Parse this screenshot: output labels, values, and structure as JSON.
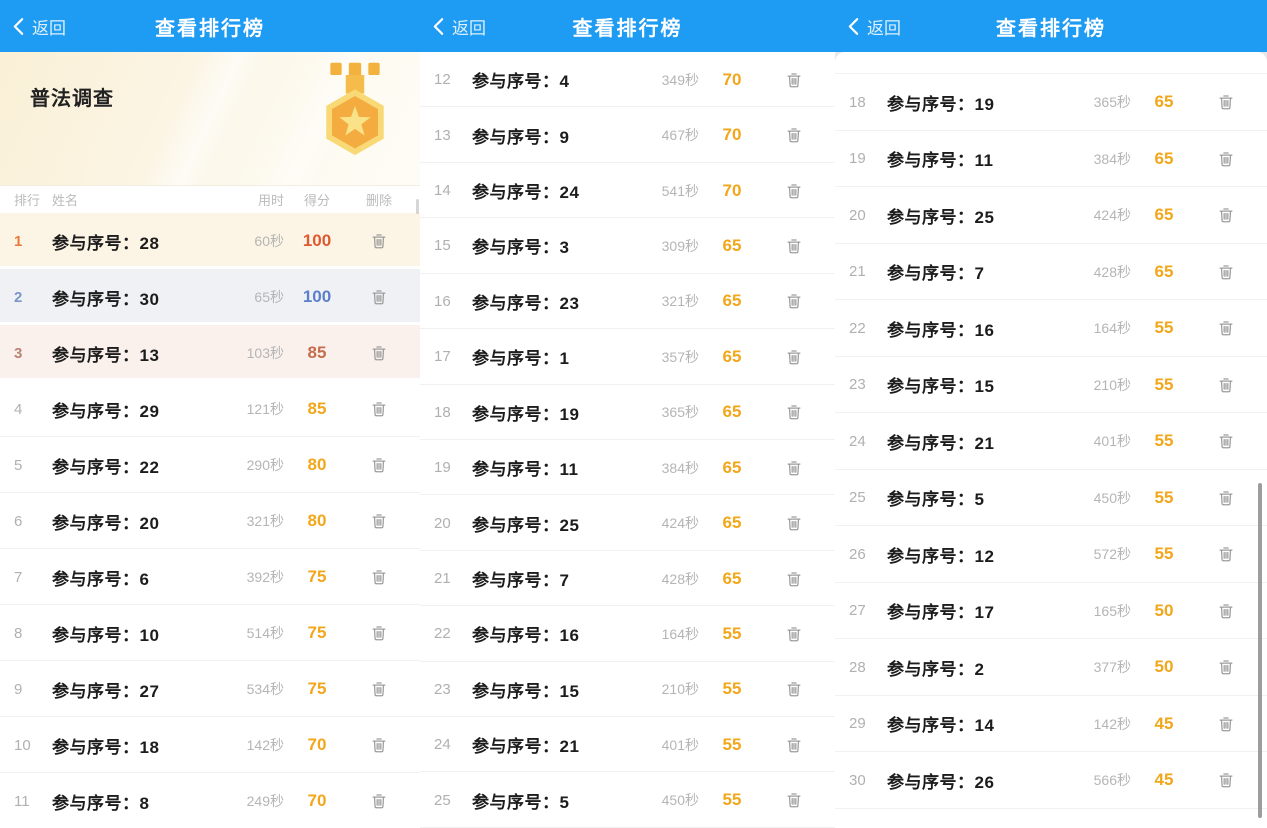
{
  "app": {
    "back_label": "返回",
    "title": "查看排行榜",
    "hero": {
      "survey_title": "普法调查",
      "medal_icon": "gold-medal-star"
    },
    "columns": {
      "rank": "排行",
      "name": "姓名",
      "time": "用时",
      "score": "得分",
      "delete": "删除"
    },
    "colors": {
      "header-bg": "#1E9BF2",
      "col-header": "#BBBBBB",
      "separator": "#F1F1F1",
      "name-color": "#1C1C1C",
      "time-color": "#B5B5B5",
      "rank-default": "#B0B0B0",
      "score-default": "#F2A71B",
      "row1-bg": "#FCF4E4",
      "rank1": "#E87A3C",
      "score1": "#DF5A30",
      "row2-bg": "#F0F1F4",
      "rank2": "#7A97C7",
      "score2": "#5C7FCB",
      "row3-bg": "#FAF1ED",
      "rank3": "#BD8273",
      "score3": "#C66C4E",
      "trash": "#9C9C9C",
      "scrollbar": "#8C8C8C",
      "medal-light": "#F8D976",
      "medal-dark": "#F4AC40",
      "medal-star": "#FAE289",
      "medal-ribbon": "#F2B23D"
    }
  },
  "panels": [
    {
      "name": "ranks-1-11",
      "rows": [
        {
          "rank": "1",
          "name": "参与序号：28",
          "time": "60秒",
          "score": "100",
          "theme": "first"
        },
        {
          "rank": "2",
          "name": "参与序号：30",
          "time": "65秒",
          "score": "100",
          "theme": "second"
        },
        {
          "rank": "3",
          "name": "参与序号：13",
          "time": "103秒",
          "score": "85",
          "theme": "third"
        },
        {
          "rank": "4",
          "name": "参与序号：29",
          "time": "121秒",
          "score": "85"
        },
        {
          "rank": "5",
          "name": "参与序号：22",
          "time": "290秒",
          "score": "80"
        },
        {
          "rank": "6",
          "name": "参与序号：20",
          "time": "321秒",
          "score": "80"
        },
        {
          "rank": "7",
          "name": "参与序号：6",
          "time": "392秒",
          "score": "75"
        },
        {
          "rank": "8",
          "name": "参与序号：10",
          "time": "514秒",
          "score": "75"
        },
        {
          "rank": "9",
          "name": "参与序号：27",
          "time": "534秒",
          "score": "75"
        },
        {
          "rank": "10",
          "name": "参与序号：18",
          "time": "142秒",
          "score": "70"
        },
        {
          "rank": "11",
          "name": "参与序号：8",
          "time": "249秒",
          "score": "70"
        }
      ]
    },
    {
      "name": "ranks-12-25",
      "rows": [
        {
          "rank": "12",
          "name": "参与序号：4",
          "time": "349秒",
          "score": "70"
        },
        {
          "rank": "13",
          "name": "参与序号：9",
          "time": "467秒",
          "score": "70"
        },
        {
          "rank": "14",
          "name": "参与序号：24",
          "time": "541秒",
          "score": "70"
        },
        {
          "rank": "15",
          "name": "参与序号：3",
          "time": "309秒",
          "score": "65"
        },
        {
          "rank": "16",
          "name": "参与序号：23",
          "time": "321秒",
          "score": "65"
        },
        {
          "rank": "17",
          "name": "参与序号：1",
          "time": "357秒",
          "score": "65"
        },
        {
          "rank": "18",
          "name": "参与序号：19",
          "time": "365秒",
          "score": "65"
        },
        {
          "rank": "19",
          "name": "参与序号：11",
          "time": "384秒",
          "score": "65"
        },
        {
          "rank": "20",
          "name": "参与序号：25",
          "time": "424秒",
          "score": "65"
        },
        {
          "rank": "21",
          "name": "参与序号：7",
          "time": "428秒",
          "score": "65"
        },
        {
          "rank": "22",
          "name": "参与序号：16",
          "time": "164秒",
          "score": "55"
        },
        {
          "rank": "23",
          "name": "参与序号：15",
          "time": "210秒",
          "score": "55"
        },
        {
          "rank": "24",
          "name": "参与序号：21",
          "time": "401秒",
          "score": "55"
        },
        {
          "rank": "25",
          "name": "参与序号：5",
          "time": "450秒",
          "score": "55"
        }
      ]
    },
    {
      "name": "ranks-18-30",
      "rows": [
        {
          "rank": "18",
          "name": "参与序号：19",
          "time": "365秒",
          "score": "65"
        },
        {
          "rank": "19",
          "name": "参与序号：11",
          "time": "384秒",
          "score": "65"
        },
        {
          "rank": "20",
          "name": "参与序号：25",
          "time": "424秒",
          "score": "65"
        },
        {
          "rank": "21",
          "name": "参与序号：7",
          "time": "428秒",
          "score": "65"
        },
        {
          "rank": "22",
          "name": "参与序号：16",
          "time": "164秒",
          "score": "55"
        },
        {
          "rank": "23",
          "name": "参与序号：15",
          "time": "210秒",
          "score": "55"
        },
        {
          "rank": "24",
          "name": "参与序号：21",
          "time": "401秒",
          "score": "55"
        },
        {
          "rank": "25",
          "name": "参与序号：5",
          "time": "450秒",
          "score": "55"
        },
        {
          "rank": "26",
          "name": "参与序号：12",
          "time": "572秒",
          "score": "55"
        },
        {
          "rank": "27",
          "name": "参与序号：17",
          "time": "165秒",
          "score": "50"
        },
        {
          "rank": "28",
          "name": "参与序号：2",
          "time": "377秒",
          "score": "50"
        },
        {
          "rank": "29",
          "name": "参与序号：14",
          "time": "142秒",
          "score": "45"
        },
        {
          "rank": "30",
          "name": "参与序号：26",
          "time": "566秒",
          "score": "45"
        }
      ]
    }
  ]
}
